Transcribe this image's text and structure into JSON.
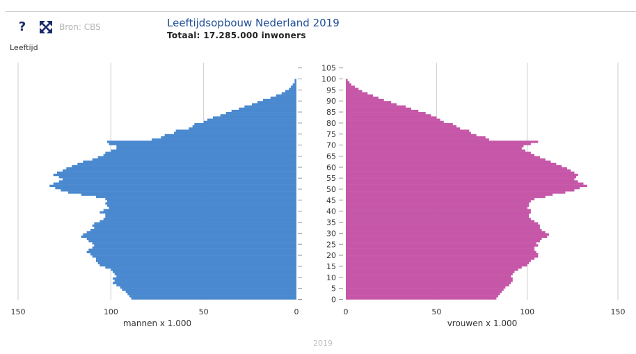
{
  "toolbar": {
    "help_label": "?",
    "expand_icon": "expand-arrows-icon",
    "source": "Bron: CBS"
  },
  "header": {
    "title": "Leeftijdsopbouw Nederland 2019",
    "subtitle": "Totaal: 17.285.000 inwoners"
  },
  "colors": {
    "men": "#4a89cf",
    "women": "#c657a8",
    "grid": "#cccccc",
    "title": "#1f4e96"
  },
  "chart_data": {
    "type": "bar",
    "orientation": "horizontal-pyramid",
    "title": "Leeftijdsopbouw Nederland 2019",
    "subtitle": "Totaal: 17.285.000 inwoners",
    "year": "2019",
    "ylabel": "Leeftijd",
    "age_ticks": [
      0,
      5,
      10,
      15,
      20,
      25,
      30,
      35,
      40,
      45,
      50,
      55,
      60,
      65,
      70,
      75,
      80,
      85,
      90,
      95,
      100,
      105
    ],
    "age_range": [
      0,
      105
    ],
    "unit": "x 1.000",
    "xlim": [
      0,
      150
    ],
    "x_ticks": [
      0,
      50,
      100,
      150
    ],
    "left_panel": {
      "xlabel": "mannen x 1.000",
      "x_ticks_labels": [
        "150",
        "100",
        "50",
        "0"
      ]
    },
    "right_panel": {
      "xlabel": "vrouwen x 1.000",
      "x_ticks_labels": [
        "0",
        "50",
        "100",
        "150"
      ]
    },
    "grid": true,
    "series": [
      {
        "name": "mannen",
        "color": "#4a89cf",
        "values": [
          89,
          90,
          91,
          92,
          94,
          95,
          97,
          99,
          98,
          99,
          97,
          98,
          99,
          100,
          103,
          106,
          107,
          108,
          108,
          110,
          111,
          113,
          112,
          110,
          109,
          110,
          112,
          113,
          116,
          115,
          113,
          111,
          109,
          110,
          109,
          106,
          104,
          103,
          103,
          106,
          104,
          101,
          102,
          103,
          102,
          103,
          108,
          116,
          123,
          127,
          130,
          133,
          131,
          128,
          126,
          128,
          131,
          129,
          126,
          124,
          121,
          118,
          115,
          110,
          107,
          104,
          103,
          100,
          97,
          97,
          101,
          102,
          78,
          73,
          71,
          66,
          65,
          58,
          56,
          55,
          50,
          48,
          45,
          41,
          38,
          35,
          31,
          28,
          24,
          21,
          18,
          14,
          11,
          8,
          6,
          4,
          3,
          2,
          1,
          1,
          0,
          0,
          0,
          0,
          0,
          0
        ]
      },
      {
        "name": "vrouwen",
        "color": "#c657a8",
        "values": [
          83,
          84,
          85,
          86,
          87,
          88,
          90,
          91,
          92,
          92,
          91,
          92,
          93,
          95,
          97,
          100,
          101,
          102,
          104,
          106,
          106,
          105,
          104,
          104,
          106,
          105,
          107,
          108,
          111,
          112,
          110,
          108,
          107,
          107,
          106,
          104,
          102,
          101,
          101,
          102,
          102,
          100,
          101,
          101,
          102,
          104,
          110,
          114,
          121,
          126,
          129,
          133,
          131,
          128,
          126,
          127,
          128,
          126,
          124,
          122,
          119,
          116,
          113,
          110,
          107,
          104,
          102,
          99,
          97,
          98,
          102,
          106,
          79,
          77,
          72,
          69,
          68,
          63,
          61,
          59,
          54,
          52,
          50,
          47,
          44,
          40,
          36,
          33,
          28,
          25,
          21,
          18,
          15,
          12,
          9,
          7,
          5,
          3,
          2,
          1,
          0,
          0,
          0,
          0,
          0,
          0
        ]
      }
    ]
  }
}
